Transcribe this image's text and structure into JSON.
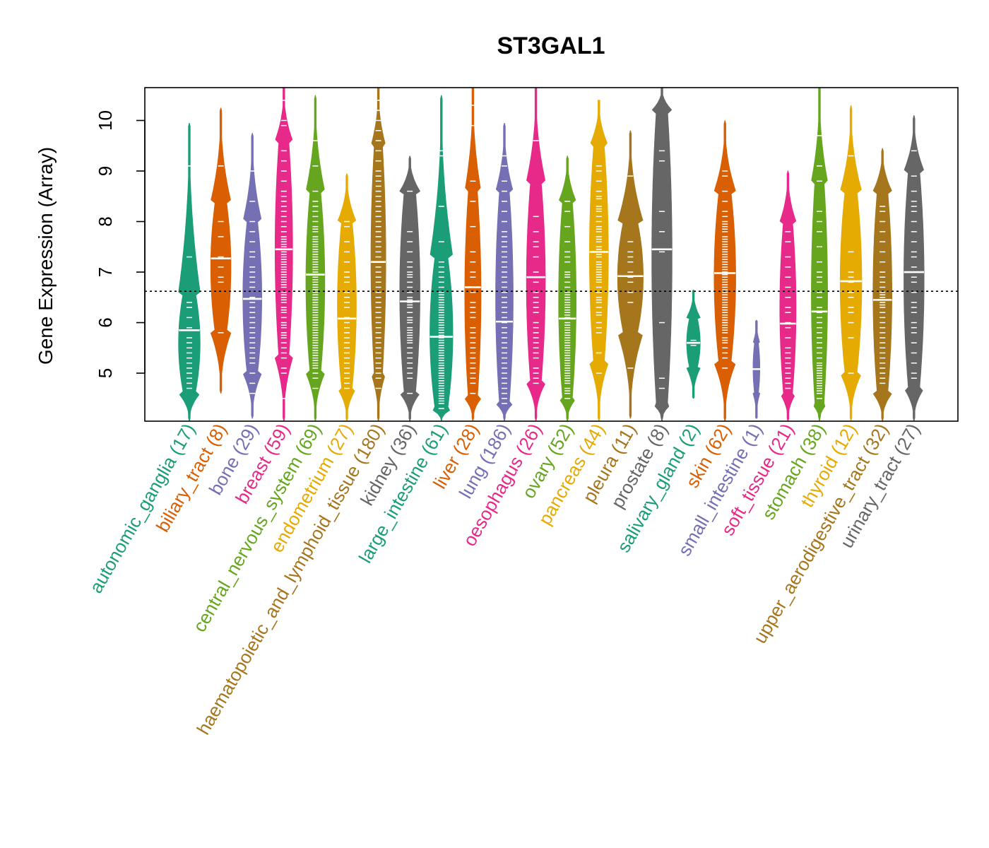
{
  "chart_data": {
    "type": "violin",
    "title": "ST3GAL1",
    "ylabel": "Gene Expression (Array)",
    "xlabel": "",
    "ylim": [
      4.05,
      10.65
    ],
    "yticks": [
      5,
      6,
      7,
      8,
      9,
      10
    ],
    "reference_line": 6.62,
    "grid": false,
    "categories": [
      {
        "name": "autonomic_ganglia",
        "n": 17,
        "color": "#1B9E77",
        "min": 4.05,
        "max": 9.95,
        "median": 5.85,
        "core_lo": 4.6,
        "core_hi": 6.6,
        "width": 0.8,
        "points": [
          9.1,
          7.3,
          6.4,
          6.1,
          5.9,
          5.7,
          5.5,
          5.4,
          5.3,
          5.2,
          5.1,
          5.0,
          4.9,
          4.8,
          4.7,
          6.3,
          5.6
        ]
      },
      {
        "name": "biliary_tract",
        "n": 8,
        "color": "#D95F02",
        "min": 4.6,
        "max": 10.25,
        "median": 7.27,
        "core_lo": 5.8,
        "core_hi": 8.4,
        "width": 0.75,
        "points": [
          9.1,
          8.0,
          7.7,
          7.3,
          7.1,
          6.9,
          6.8,
          5.8
        ]
      },
      {
        "name": "bone",
        "n": 29,
        "color": "#7570B3",
        "min": 4.1,
        "max": 9.75,
        "median": 6.47,
        "core_lo": 5.0,
        "core_hi": 8.0,
        "width": 0.7,
        "points": [
          9.0,
          8.4,
          8.0,
          7.8,
          7.6,
          7.4,
          7.3,
          7.1,
          7.0,
          6.9,
          6.8,
          6.7,
          6.5,
          6.4,
          6.3,
          6.2,
          6.1,
          6.0,
          5.9,
          5.8,
          5.7,
          5.6,
          5.5,
          5.4,
          5.3,
          5.2,
          5.0,
          4.8,
          4.6
        ]
      },
      {
        "name": "breast",
        "n": 59,
        "color": "#E7298A",
        "min": 4.05,
        "max": 10.65,
        "median": 7.45,
        "core_lo": 5.3,
        "core_hi": 9.6,
        "width": 0.65,
        "points": [
          10.4,
          10.0,
          9.9,
          9.4,
          9.2,
          9.0,
          8.8,
          8.6,
          8.4,
          8.2,
          8.1,
          8.0,
          7.9,
          7.8,
          7.7,
          7.6,
          7.55,
          7.5,
          7.4,
          7.35,
          7.3,
          7.25,
          7.2,
          7.1,
          7.0,
          6.95,
          6.9,
          6.8,
          6.7,
          6.6,
          6.5,
          6.4,
          6.3,
          6.2,
          6.1,
          6.0,
          5.9,
          5.8,
          5.7,
          5.6,
          5.5,
          5.4,
          5.3,
          5.1,
          5.0,
          4.5,
          7.65,
          7.15,
          6.85,
          6.55,
          6.45,
          6.25,
          8.5,
          8.3,
          7.45,
          7.05,
          6.75,
          5.95,
          5.75
        ]
      },
      {
        "name": "central_nervous_system",
        "n": 69,
        "color": "#66A61E",
        "min": 4.05,
        "max": 10.5,
        "median": 6.95,
        "core_lo": 5.0,
        "core_hi": 8.6,
        "width": 0.7,
        "points": [
          9.6,
          9.1,
          8.6,
          8.4,
          8.2,
          8.0,
          7.9,
          7.8,
          7.7,
          7.6,
          7.5,
          7.45,
          7.4,
          7.3,
          7.25,
          7.2,
          7.1,
          7.05,
          7.0,
          6.9,
          6.85,
          6.8,
          6.75,
          6.7,
          6.6,
          6.55,
          6.5,
          6.45,
          6.4,
          6.3,
          6.25,
          6.2,
          6.1,
          6.0,
          5.9,
          5.8,
          5.7,
          5.6,
          5.5,
          5.4,
          5.3,
          5.2,
          5.1,
          5.0,
          4.9,
          4.7,
          7.35,
          7.15,
          6.95,
          6.65,
          6.35,
          6.15,
          5.95,
          5.75,
          5.55,
          5.45,
          5.35,
          5.25,
          8.1,
          7.65,
          7.55,
          6.05,
          5.85,
          5.65,
          5.15,
          6.45,
          7.85,
          8.3,
          6.95
        ]
      },
      {
        "name": "endometrium",
        "n": 27,
        "color": "#E6AB02",
        "min": 4.05,
        "max": 8.95,
        "median": 6.08,
        "core_lo": 4.7,
        "core_hi": 8.0,
        "width": 0.7,
        "points": [
          8.0,
          7.9,
          7.6,
          7.2,
          7.0,
          6.8,
          6.6,
          6.4,
          6.3,
          6.1,
          6.0,
          5.9,
          5.8,
          5.7,
          5.5,
          5.4,
          5.3,
          5.2,
          5.1,
          5.0,
          4.9,
          4.8,
          4.7,
          6.5,
          5.6,
          6.9,
          7.4
        ]
      },
      {
        "name": "haematopoietic_and_lymphoid_tissue",
        "n": 180,
        "color": "#A6761D",
        "min": 4.05,
        "max": 10.65,
        "median": 7.2,
        "core_lo": 5.0,
        "core_hi": 9.5,
        "width": 0.55,
        "points": [
          10.4,
          10.2,
          10.0,
          9.8,
          9.6,
          9.4,
          9.2,
          9.0,
          8.9,
          8.8,
          8.7,
          8.6,
          8.5,
          8.4,
          8.3,
          8.2,
          8.1,
          8.0,
          7.9,
          7.8,
          7.7,
          7.6,
          7.5,
          7.4,
          7.3,
          7.2,
          7.1,
          7.0,
          6.9,
          6.8,
          6.7,
          6.6,
          6.5,
          6.4,
          6.3,
          6.2,
          6.1,
          6.0,
          5.9,
          5.8,
          5.7,
          5.6,
          5.5,
          5.4,
          5.3,
          5.2,
          5.1,
          5.0,
          4.9,
          4.7
        ]
      },
      {
        "name": "kidney",
        "n": 36,
        "color": "#666666",
        "min": 4.05,
        "max": 9.3,
        "median": 6.42,
        "core_lo": 4.6,
        "core_hi": 8.6,
        "width": 0.75,
        "points": [
          8.6,
          7.8,
          7.6,
          7.4,
          7.2,
          7.0,
          6.9,
          6.8,
          6.7,
          6.6,
          6.5,
          6.4,
          6.3,
          6.2,
          6.1,
          6.0,
          5.9,
          5.8,
          5.7,
          5.6,
          5.5,
          5.4,
          5.3,
          5.2,
          5.1,
          5.0,
          4.9,
          4.6,
          6.45,
          6.35,
          6.05,
          5.85,
          5.75,
          5.65,
          7.1,
          6.95
        ]
      },
      {
        "name": "large_intestine",
        "n": 61,
        "color": "#1B9E77",
        "min": 4.05,
        "max": 10.5,
        "median": 5.72,
        "core_lo": 4.3,
        "core_hi": 7.3,
        "width": 0.85,
        "points": [
          9.4,
          9.3,
          8.3,
          7.6,
          7.2,
          7.0,
          6.9,
          6.8,
          6.6,
          6.5,
          6.4,
          6.3,
          6.2,
          6.1,
          6.0,
          5.9,
          5.8,
          5.7,
          5.6,
          5.5,
          5.4,
          5.3,
          5.25,
          5.2,
          5.15,
          5.1,
          5.05,
          5.0,
          4.95,
          4.9,
          4.85,
          4.8,
          4.75,
          4.7,
          4.65,
          4.6,
          4.5,
          4.4,
          4.3,
          5.45,
          5.35,
          5.65,
          5.75,
          5.85,
          5.95,
          6.05,
          6.15,
          6.25,
          6.35,
          6.45,
          6.55,
          4.55,
          4.45,
          5.55,
          4.85,
          5.15,
          6.7,
          7.1,
          4.95,
          5.0,
          5.1
        ]
      },
      {
        "name": "liver",
        "n": 28,
        "color": "#D95F02",
        "min": 4.05,
        "max": 10.65,
        "median": 6.7,
        "core_lo": 4.5,
        "core_hi": 8.6,
        "width": 0.6,
        "points": [
          10.3,
          9.9,
          8.8,
          8.4,
          7.9,
          7.4,
          7.2,
          7.0,
          6.7,
          6.6,
          6.4,
          6.2,
          6.1,
          5.9,
          5.8,
          5.6,
          5.5,
          5.4,
          5.2,
          5.1,
          5.0,
          4.9,
          4.8,
          4.6,
          5.3,
          5.7,
          6.3,
          6.9
        ]
      },
      {
        "name": "lung",
        "n": 186,
        "color": "#7570B3",
        "min": 4.05,
        "max": 9.95,
        "median": 6.02,
        "core_lo": 4.4,
        "core_hi": 8.6,
        "width": 0.65,
        "points": [
          9.3,
          9.1,
          8.8,
          8.6,
          8.4,
          8.2,
          8.0,
          7.8,
          7.7,
          7.6,
          7.5,
          7.4,
          7.3,
          7.2,
          7.1,
          7.0,
          6.9,
          6.8,
          6.7,
          6.6,
          6.5,
          6.4,
          6.3,
          6.2,
          6.1,
          6.0,
          5.9,
          5.8,
          5.7,
          5.6,
          5.5,
          5.4,
          5.3,
          5.2,
          5.1,
          5.0,
          4.9,
          4.8,
          4.7,
          4.6,
          4.5,
          4.4
        ]
      },
      {
        "name": "oesophagus",
        "n": 26,
        "color": "#E7298A",
        "min": 4.05,
        "max": 10.65,
        "median": 6.9,
        "core_lo": 4.8,
        "core_hi": 8.8,
        "width": 0.7,
        "points": [
          9.6,
          8.1,
          7.8,
          7.6,
          7.5,
          7.3,
          7.0,
          6.9,
          6.8,
          6.6,
          6.5,
          6.4,
          6.3,
          6.2,
          6.0,
          5.9,
          5.8,
          5.7,
          5.6,
          5.5,
          5.4,
          5.3,
          5.1,
          5.0,
          4.9,
          4.8
        ]
      },
      {
        "name": "ovary",
        "n": 52,
        "color": "#66A61E",
        "min": 4.05,
        "max": 9.3,
        "median": 6.08,
        "core_lo": 4.5,
        "core_hi": 8.4,
        "width": 0.65,
        "points": [
          8.4,
          8.2,
          7.9,
          7.6,
          7.4,
          7.2,
          7.0,
          6.9,
          6.8,
          6.7,
          6.6,
          6.5,
          6.4,
          6.3,
          6.2,
          6.1,
          6.0,
          5.9,
          5.8,
          5.7,
          5.6,
          5.5,
          5.4,
          5.3,
          5.2,
          5.1,
          5.0,
          4.9,
          4.8,
          4.7,
          4.6,
          4.5,
          6.45,
          6.35,
          6.15,
          5.95,
          5.85,
          5.75,
          5.65,
          5.45,
          5.35,
          5.25,
          5.15,
          5.05,
          4.95,
          7.3,
          6.95,
          6.55,
          6.25,
          5.55,
          4.85,
          4.65
        ]
      },
      {
        "name": "pancreas",
        "n": 44,
        "color": "#E6AB02",
        "min": 4.05,
        "max": 10.4,
        "median": 7.4,
        "core_lo": 5.2,
        "core_hi": 9.5,
        "width": 0.7,
        "points": [
          9.1,
          9.0,
          8.8,
          8.6,
          8.5,
          8.3,
          8.2,
          8.1,
          8.0,
          7.9,
          7.8,
          7.7,
          7.6,
          7.5,
          7.4,
          7.3,
          7.2,
          7.1,
          7.0,
          6.9,
          6.8,
          6.7,
          6.6,
          6.5,
          6.4,
          6.3,
          6.2,
          6.0,
          5.8,
          5.4,
          5.0,
          7.65,
          7.45,
          7.35,
          7.15,
          7.05,
          6.95,
          8.45,
          8.25,
          7.85,
          6.85,
          6.45,
          6.15,
          5.9
        ]
      },
      {
        "name": "pleura",
        "n": 11,
        "color": "#A6761D",
        "min": 4.1,
        "max": 9.8,
        "median": 6.92,
        "core_lo": 5.8,
        "core_hi": 8.0,
        "width": 0.95,
        "points": [
          8.9,
          7.6,
          7.4,
          7.3,
          7.2,
          7.0,
          6.9,
          6.8,
          6.6,
          6.4,
          5.1
        ]
      },
      {
        "name": "prostate",
        "n": 8,
        "color": "#666666",
        "min": 4.05,
        "max": 10.65,
        "median": 7.45,
        "core_lo": 4.4,
        "core_hi": 10.2,
        "width": 0.75,
        "points": [
          9.4,
          9.2,
          8.2,
          7.8,
          7.4,
          6.0,
          4.9,
          4.7
        ]
      },
      {
        "name": "salivary_gland",
        "n": 2,
        "color": "#1B9E77",
        "min": 4.5,
        "max": 6.65,
        "median": 5.6,
        "core_lo": 5.1,
        "core_hi": 6.1,
        "width": 0.5,
        "points": [
          5.65,
          5.55
        ]
      },
      {
        "name": "skin",
        "n": 62,
        "color": "#D95F02",
        "min": 4.05,
        "max": 10.0,
        "median": 6.98,
        "core_lo": 5.2,
        "core_hi": 8.6,
        "width": 0.8,
        "points": [
          9.0,
          8.9,
          8.6,
          8.4,
          8.2,
          8.0,
          7.9,
          7.8,
          7.7,
          7.6,
          7.5,
          7.4,
          7.3,
          7.2,
          7.1,
          7.0,
          6.9,
          6.8,
          6.7,
          6.6,
          6.5,
          6.4,
          6.3,
          6.2,
          6.1,
          6.0,
          5.9,
          5.8,
          5.7,
          5.5,
          5.3,
          5.1,
          7.25,
          7.15,
          7.05,
          6.95,
          6.85,
          6.75,
          6.65,
          6.55,
          6.45,
          6.35,
          6.25,
          6.15,
          6.05,
          7.35,
          7.45,
          7.55,
          7.65,
          5.95,
          5.85,
          5.65,
          8.1,
          7.95,
          7.85,
          6.95,
          6.6,
          6.3,
          6.0,
          5.6,
          5.4,
          7.0
        ]
      },
      {
        "name": "small_intestine",
        "n": 1,
        "color": "#7570B3",
        "min": 4.1,
        "max": 6.05,
        "median": 5.08,
        "core_lo": 4.6,
        "core_hi": 5.6,
        "width": 0.25,
        "points": [
          5.08
        ]
      },
      {
        "name": "soft_tissue",
        "n": 21,
        "color": "#E7298A",
        "min": 4.05,
        "max": 9.0,
        "median": 5.98,
        "core_lo": 4.6,
        "core_hi": 8.0,
        "width": 0.6,
        "points": [
          7.8,
          7.6,
          7.3,
          7.1,
          6.9,
          6.7,
          6.5,
          6.3,
          6.2,
          6.0,
          5.9,
          5.7,
          5.5,
          5.4,
          5.3,
          5.2,
          5.1,
          5.0,
          4.9,
          4.8,
          4.7
        ]
      },
      {
        "name": "stomach",
        "n": 38,
        "color": "#66A61E",
        "min": 4.05,
        "max": 10.65,
        "median": 6.22,
        "core_lo": 4.4,
        "core_hi": 8.8,
        "width": 0.6,
        "points": [
          9.7,
          9.1,
          8.8,
          8.2,
          7.8,
          7.5,
          7.2,
          6.9,
          6.8,
          6.5,
          6.3,
          6.1,
          6.0,
          5.9,
          5.8,
          5.6,
          5.4,
          5.3,
          5.2,
          5.1,
          5.0,
          4.9,
          4.8,
          4.7,
          4.6,
          4.5,
          5.15,
          5.05,
          4.95,
          4.85,
          4.75,
          4.65,
          5.5,
          5.7,
          6.2,
          6.6,
          7.0,
          8.0
        ]
      },
      {
        "name": "thyroid",
        "n": 12,
        "color": "#E6AB02",
        "min": 4.05,
        "max": 10.3,
        "median": 6.82,
        "core_lo": 5.0,
        "core_hi": 8.6,
        "width": 0.8,
        "points": [
          9.3,
          7.4,
          7.0,
          6.9,
          6.8,
          6.6,
          6.5,
          6.3,
          6.2,
          6.0,
          5.7,
          5.0
        ]
      },
      {
        "name": "upper_aerodigestive_tract",
        "n": 32,
        "color": "#A6761D",
        "min": 4.05,
        "max": 9.45,
        "median": 6.45,
        "core_lo": 4.6,
        "core_hi": 8.6,
        "width": 0.7,
        "points": [
          8.3,
          8.2,
          8.0,
          7.8,
          7.6,
          7.4,
          7.2,
          7.0,
          6.9,
          6.8,
          6.7,
          6.6,
          6.5,
          6.4,
          6.3,
          6.2,
          6.1,
          6.0,
          5.9,
          5.8,
          5.7,
          5.6,
          5.5,
          5.4,
          5.3,
          5.2,
          5.1,
          5.0,
          4.9,
          4.8,
          6.55,
          6.35
        ]
      },
      {
        "name": "urinary_tract",
        "n": 27,
        "color": "#666666",
        "min": 4.05,
        "max": 10.1,
        "median": 7.0,
        "core_lo": 4.7,
        "core_hi": 9.0,
        "width": 0.75,
        "points": [
          9.4,
          8.9,
          8.6,
          8.4,
          8.3,
          8.2,
          8.0,
          7.8,
          7.6,
          7.4,
          7.3,
          7.1,
          6.9,
          6.8,
          6.6,
          6.4,
          6.3,
          6.2,
          6.0,
          5.9,
          5.8,
          5.6,
          5.4,
          5.2,
          5.0,
          4.9,
          7.0
        ]
      }
    ]
  }
}
